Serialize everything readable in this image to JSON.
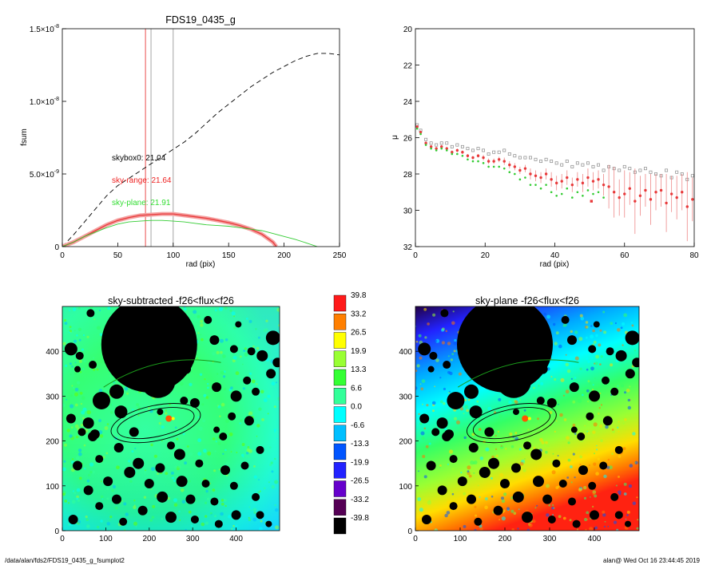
{
  "chart_data": [
    {
      "type": "line",
      "title": "FDS19_0435_g",
      "xlabel": "rad (pix)",
      "ylabel": "fsum",
      "xlim": [
        0,
        250
      ],
      "ylim": [
        0,
        1.5e-08
      ],
      "x_ticks": [
        "0",
        "50",
        "100",
        "150",
        "200",
        "250"
      ],
      "y_ticks": [
        "0",
        "5.0×10",
        "1.0×10",
        "1.5×10"
      ],
      "y_tick_exponent": [
        "",
        "-9",
        "-8",
        "-8"
      ],
      "vertical_lines": [
        {
          "x": 75,
          "color": "#e8393a"
        },
        {
          "x": 80,
          "color": "#9a9a9a"
        },
        {
          "x": 100,
          "color": "#9a9a9a"
        }
      ],
      "annotations": [
        {
          "text": "skybox0: 21.04",
          "color": "#000000"
        },
        {
          "text": "sky-range: 21.64",
          "color": "#ee2222"
        },
        {
          "text": "sky-plane: 21.91",
          "color": "#33dd33"
        }
      ],
      "series": [
        {
          "style": "dashed",
          "color": "#000000",
          "x": [
            0,
            10,
            20,
            30,
            40,
            50,
            60,
            70,
            80,
            90,
            100,
            110,
            120,
            130,
            140,
            150,
            160,
            170,
            180,
            190,
            200,
            210,
            220,
            230,
            240,
            250
          ],
          "values": [
            0,
            8e-10,
            1.7e-09,
            2.6e-09,
            3.5e-09,
            4.2e-09,
            4.7e-09,
            5.2e-09,
            5.7e-09,
            6.2e-09,
            6.7e-09,
            7.2e-09,
            7.8e-09,
            8.5e-09,
            9.2e-09,
            9.8e-09,
            1.04e-08,
            1.1e-08,
            1.15e-08,
            1.2e-08,
            1.24e-08,
            1.28e-08,
            1.31e-08,
            1.33e-08,
            1.33e-08,
            1.32e-08
          ]
        },
        {
          "style": "solid",
          "color": "#e8393a",
          "x": [
            0,
            10,
            20,
            30,
            40,
            50,
            60,
            70,
            80,
            90,
            100,
            110,
            120,
            130,
            140,
            150,
            160,
            170,
            180,
            190,
            193
          ],
          "values": [
            0,
            3e-10,
            7e-10,
            1.1e-09,
            1.5e-09,
            1.8e-09,
            2e-09,
            2.15e-09,
            2.2e-09,
            2.25e-09,
            2.25e-09,
            2.15e-09,
            2.05e-09,
            1.95e-09,
            1.8e-09,
            1.65e-09,
            1.45e-09,
            1.2e-09,
            8.5e-10,
            3e-10,
            0
          ]
        },
        {
          "style": "solid",
          "color": "#33cc33",
          "x": [
            0,
            10,
            20,
            30,
            40,
            50,
            60,
            70,
            80,
            90,
            100,
            110,
            120,
            130,
            140,
            150,
            160,
            170,
            180,
            190,
            200,
            210,
            220,
            230
          ],
          "values": [
            0,
            3e-10,
            7e-10,
            1e-09,
            1.3e-09,
            1.55e-09,
            1.7e-09,
            1.75e-09,
            1.8e-09,
            1.8e-09,
            1.75e-09,
            1.7e-09,
            1.6e-09,
            1.5e-09,
            1.45e-09,
            1.4e-09,
            1.3e-09,
            1.2e-09,
            1.1e-09,
            9e-10,
            7e-10,
            5e-10,
            2.5e-10,
            0
          ]
        }
      ]
    },
    {
      "type": "scatter",
      "xlabel": "rad (pix)",
      "ylabel": "μ",
      "xlim": [
        0,
        80
      ],
      "ylim": [
        32,
        20
      ],
      "x_ticks": [
        "0",
        "20",
        "40",
        "60",
        "80"
      ],
      "y_ticks": [
        "20",
        "22",
        "24",
        "26",
        "28",
        "30",
        "32"
      ],
      "series": [
        {
          "color": "#888888",
          "x": [
            0.5,
            1.5,
            3,
            4.5,
            6,
            7.5,
            9,
            10.5,
            12,
            13.5,
            15,
            16.5,
            18,
            19.5,
            21,
            22.5,
            24,
            25.5,
            27,
            28.5,
            30,
            31.5,
            33,
            34.5,
            36,
            37.5,
            39,
            40.5,
            42,
            43.5,
            45,
            46.5,
            48,
            49.5,
            51,
            52.5,
            54,
            55.5,
            57,
            58.5,
            60,
            61.5,
            63,
            64.5,
            66,
            67.5,
            69,
            70.5,
            72,
            73.5,
            75,
            76.5,
            78,
            79.5
          ],
          "values": [
            25.3,
            25.6,
            26.1,
            26.3,
            26.4,
            26.3,
            26.3,
            26.5,
            26.4,
            26.5,
            26.6,
            26.7,
            26.6,
            26.7,
            26.9,
            26.8,
            26.8,
            26.7,
            26.9,
            27.0,
            27.1,
            27.1,
            27.1,
            27.2,
            27.3,
            27.2,
            27.3,
            27.4,
            27.5,
            27.3,
            27.6,
            27.4,
            27.5,
            27.4,
            27.6,
            27.5,
            27.8,
            27.6,
            27.7,
            27.8,
            27.6,
            27.7,
            27.9,
            27.8,
            27.7,
            27.9,
            28.0,
            28.1,
            27.8,
            28.2,
            27.9,
            28.0,
            28.3,
            28.1
          ]
        },
        {
          "color": "#e8393a",
          "x": [
            0.5,
            1.5,
            3,
            4.5,
            6,
            7.5,
            9,
            10.5,
            12,
            13.5,
            15,
            16.5,
            18,
            19.5,
            21,
            22.5,
            24,
            25.5,
            27,
            28.5,
            30,
            31.5,
            33,
            34.5,
            36,
            37.5,
            39,
            40.5,
            42,
            43.5,
            45,
            46.5,
            48,
            49.5,
            51,
            52.5,
            54,
            55.5,
            57,
            58.5,
            60,
            61.5,
            63,
            64.5,
            66,
            67.5,
            69,
            70.5,
            72,
            73.5,
            75,
            76.5,
            78,
            79.5
          ],
          "values": [
            25.4,
            25.7,
            26.3,
            26.5,
            26.6,
            26.5,
            26.6,
            26.8,
            26.7,
            26.8,
            27.0,
            27.1,
            27.0,
            27.1,
            27.3,
            27.3,
            27.2,
            27.3,
            27.5,
            27.6,
            27.8,
            27.7,
            28.0,
            28.1,
            28.2,
            28.0,
            28.3,
            28.5,
            28.4,
            28.2,
            28.6,
            28.3,
            28.5,
            28.2,
            28.4,
            28.3,
            28.6,
            28.7,
            29.0,
            29.3,
            29.1,
            28.8,
            29.5,
            29.2,
            28.9,
            29.4,
            29.0,
            28.9,
            29.6,
            29.1,
            29.3,
            29.0,
            29.8,
            29.4
          ],
          "err": [
            0.1,
            0.1,
            0.1,
            0.1,
            0.1,
            0.1,
            0.1,
            0.1,
            0.1,
            0.1,
            0.1,
            0.1,
            0.1,
            0.15,
            0.15,
            0.15,
            0.15,
            0.2,
            0.2,
            0.2,
            0.2,
            0.2,
            0.3,
            0.3,
            0.3,
            0.3,
            0.4,
            0.4,
            0.4,
            0.4,
            0.4,
            0.4,
            0.5,
            0.5,
            0.5,
            0.5,
            0.6,
            1.2,
            1.4,
            1.0,
            1.3,
            0.9,
            1.8,
            1.1,
            0.9,
            1.4,
            1.0,
            0.9,
            1.6,
            1.0,
            1.2,
            1.0,
            1.9,
            1.2
          ]
        },
        {
          "color": "#33cc33",
          "x": [
            0.5,
            1.5,
            3,
            4.5,
            6,
            7.5,
            9,
            10.5,
            12,
            13.5,
            15,
            16.5,
            18,
            19.5,
            21,
            22.5,
            24,
            25.5,
            27,
            28.5,
            30,
            31.5,
            33,
            34.5,
            36,
            37.5,
            39,
            40.5,
            42,
            43.5,
            45,
            46.5,
            48,
            49.5,
            51,
            52.5,
            54
          ],
          "values": [
            25.5,
            25.8,
            26.4,
            26.6,
            26.7,
            26.6,
            26.7,
            26.9,
            26.9,
            27.0,
            27.2,
            27.3,
            27.3,
            27.4,
            27.6,
            27.6,
            27.6,
            27.7,
            27.9,
            28.0,
            28.3,
            28.2,
            28.6,
            28.6,
            28.8,
            28.6,
            29.0,
            29.2,
            29.1,
            28.8,
            29.3,
            29.0,
            29.2,
            28.9,
            29.1,
            29.0,
            29.3
          ]
        },
        {
          "color": "#e8393a",
          "single": true,
          "x": [
            50.5
          ],
          "values": [
            29.5
          ]
        }
      ]
    },
    {
      "type": "heatmap",
      "title": "sky-subtracted -f26<flux<f26",
      "xlim": [
        0,
        500
      ],
      "ylim": [
        0,
        500
      ],
      "x_ticks": [
        "0",
        "100",
        "200",
        "300",
        "400"
      ],
      "y_ticks": [
        "0",
        "100",
        "200",
        "300",
        "400"
      ]
    },
    {
      "type": "heatmap",
      "title": "sky-plane -f26<flux<f26",
      "xlim": [
        0,
        500
      ],
      "ylim": [
        0,
        500
      ],
      "x_ticks": [
        "0",
        "100",
        "200",
        "300",
        "400"
      ],
      "y_ticks": [
        "0",
        "100",
        "200",
        "300",
        "400"
      ]
    }
  ],
  "colorbar": {
    "labels": [
      "39.8",
      "33.2",
      "26.5",
      "19.9",
      "13.3",
      "6.6",
      "0.0",
      "-6.6",
      "-13.3",
      "-19.9",
      "-26.5",
      "-33.2",
      "-39.8"
    ],
    "colors": [
      "#ff1a1a",
      "#ff7f00",
      "#ffff00",
      "#99ff33",
      "#33ff33",
      "#33ff99",
      "#00ffff",
      "#00bfff",
      "#0055ff",
      "#2222ff",
      "#6600cc",
      "#550055",
      "#000000"
    ]
  },
  "footer": {
    "left": "/data/alan/fds2/FDS19_0435_g_fsumplot2",
    "right": "alan@  Wed Oct 16 23:44:45 2019"
  }
}
